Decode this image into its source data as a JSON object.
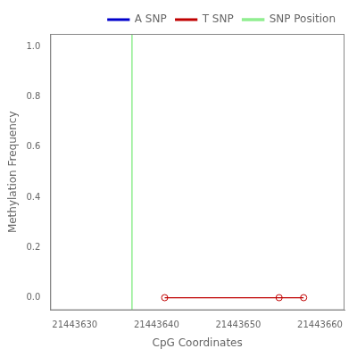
{
  "chart_data": {
    "type": "line",
    "xlabel": "CpG Coordinates",
    "ylabel": "Methylation Frequency",
    "xlim": [
      21443627,
      21443663
    ],
    "ylim": [
      -0.05,
      1.05
    ],
    "xticks": [
      21443630,
      21443640,
      21443650,
      21443660
    ],
    "yticks": [
      {
        "value": 0.0,
        "label": "0.0"
      },
      0.2,
      0.4,
      0.6,
      0.8,
      {
        "value": 1.0,
        "label": "1.0"
      }
    ],
    "grid": false,
    "legend": "upper right",
    "series": [
      {
        "name": "A SNP",
        "color": "#0000CC",
        "x": [],
        "values": []
      },
      {
        "name": "T SNP",
        "color": "#C00000",
        "marker": "circle",
        "x": [
          21443641,
          21443655,
          21443658
        ],
        "values": [
          0.0,
          0.0,
          0.0
        ]
      },
      {
        "name": "SNP Position",
        "type": "vline",
        "color": "#90EE90",
        "x": [
          21443637
        ]
      }
    ]
  }
}
